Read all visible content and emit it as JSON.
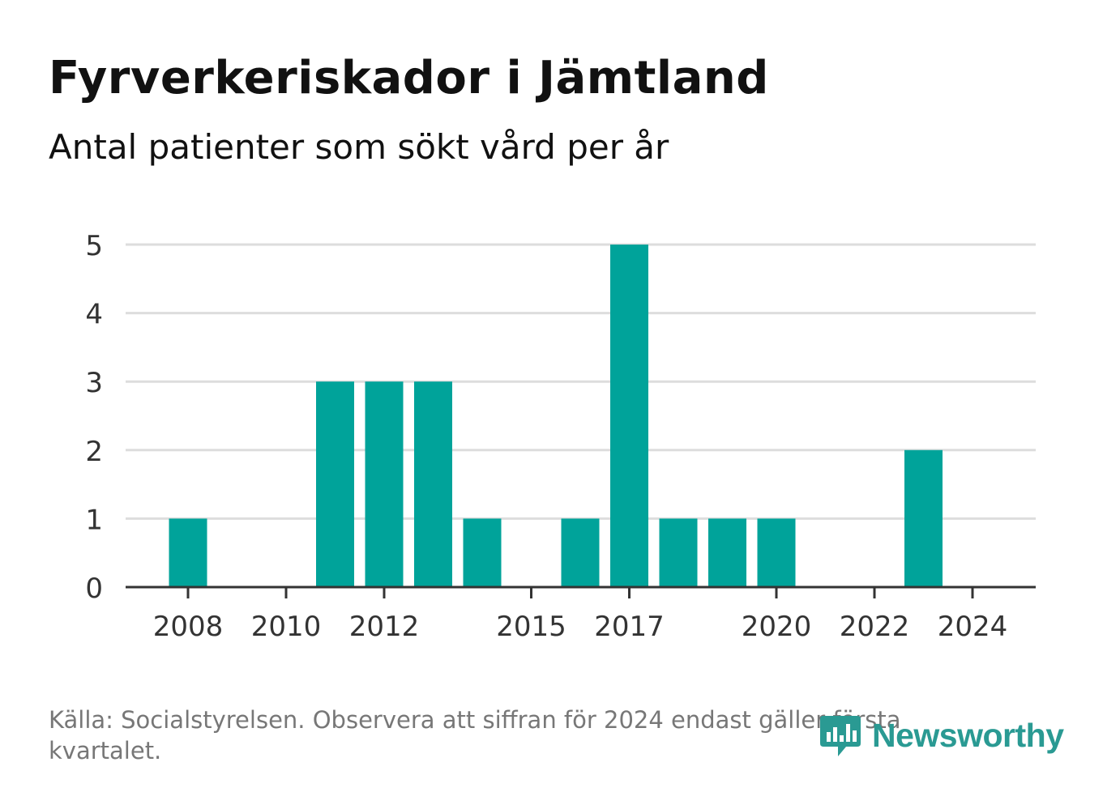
{
  "header": {
    "title": "Fyrverkeriskador i Jämtland",
    "subtitle": "Antal patienter som sökt vård per år"
  },
  "footer": {
    "source": "Källa: Socialstyrelsen. Observera att siffran för 2024 endast gäller första kvartalet.",
    "brand": "Newsworthy"
  },
  "colors": {
    "bar": "#00a39a",
    "grid": "#dddddd",
    "axis": "#333333",
    "brand": "#2a9a93"
  },
  "chart_data": {
    "type": "bar",
    "title": "Fyrverkeriskador i Jämtland",
    "subtitle": "Antal patienter som sökt vård per år",
    "xlabel": "",
    "ylabel": "",
    "x": [
      2008,
      2009,
      2010,
      2011,
      2012,
      2013,
      2014,
      2015,
      2016,
      2017,
      2018,
      2019,
      2020,
      2021,
      2022,
      2023,
      2024
    ],
    "values": [
      1,
      0,
      0,
      3,
      3,
      3,
      1,
      0,
      1,
      5,
      1,
      1,
      1,
      0,
      0,
      2,
      0
    ],
    "xticks": [
      2008,
      2010,
      2012,
      2015,
      2017,
      2020,
      2022,
      2024
    ],
    "yticks": [
      0,
      1,
      2,
      3,
      4,
      5
    ],
    "ylim": [
      0,
      5
    ],
    "grid": true,
    "legend": "none"
  }
}
